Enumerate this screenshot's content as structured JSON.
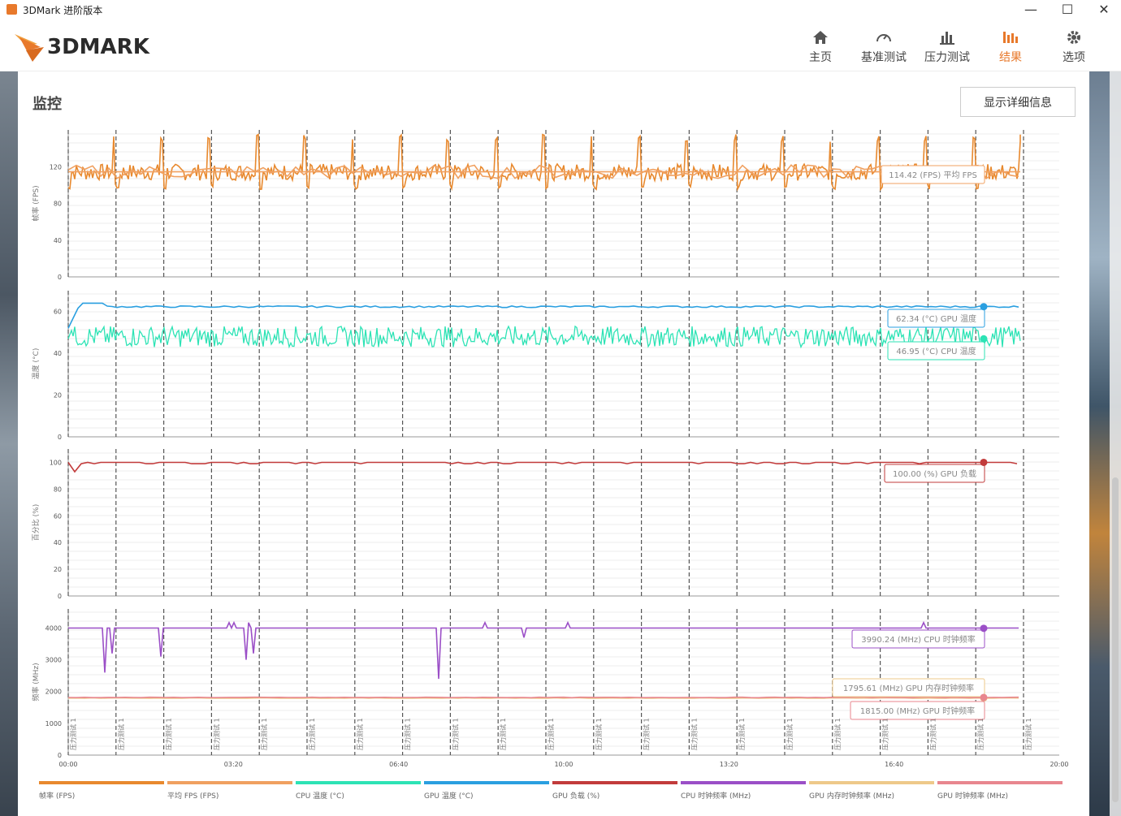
{
  "window": {
    "title": "3DMark 进阶版本",
    "minimize": "—",
    "maximize": "☐",
    "close": "✕"
  },
  "brand": {
    "logo_text": "3DMARK"
  },
  "nav": [
    {
      "label": "主页",
      "icon": "home-icon",
      "active": false
    },
    {
      "label": "基准测试",
      "icon": "gauge-icon",
      "active": false
    },
    {
      "label": "压力测试",
      "icon": "bar-chart-icon",
      "active": false
    },
    {
      "label": "结果",
      "icon": "results-icon",
      "active": true
    },
    {
      "label": "选项",
      "icon": "gear-icon",
      "active": false
    }
  ],
  "section": {
    "title": "监控",
    "detail_button": "显示详细信息"
  },
  "chart_data": {
    "type": "line",
    "x_ticks": [
      "00:00",
      "03:20",
      "06:40",
      "10:00",
      "13:20",
      "16:40",
      "20:00"
    ],
    "x_range_seconds": [
      0,
      1200
    ],
    "marker_label": "压力测试 1",
    "marker_count": 21,
    "colors": {
      "fps": "#e8892e",
      "avg_fps": "#f0a060",
      "cpu_temp": "#2de3b5",
      "gpu_temp": "#2a9fe0",
      "gpu_load": "#c23b3b",
      "cpu_clock": "#9b4fc7",
      "gpu_mem_clock": "#eec98a",
      "gpu_clock": "#e8868e"
    },
    "panels": [
      {
        "ylabel": "帧率 (FPS)",
        "yticks": [
          0,
          40,
          80,
          120
        ],
        "ylim": [
          0,
          160
        ],
        "series": [
          {
            "name": "帧率 (FPS)",
            "key": "fps",
            "pattern": "sawtooth",
            "base": 114,
            "min": 95,
            "peak": 155
          },
          {
            "name": "平均 FPS (FPS)",
            "key": "avg_fps",
            "value": 114.42
          }
        ],
        "callouts": [
          {
            "text": "114.42 (FPS) 平均 FPS",
            "key": "avg_fps"
          }
        ]
      },
      {
        "ylabel": "温度 (°C)",
        "yticks": [
          0,
          20,
          40,
          60
        ],
        "ylim": [
          0,
          70
        ],
        "series": [
          {
            "name": "GPU 温度 (°C)",
            "key": "gpu_temp",
            "value": 62.34,
            "peak": 64
          },
          {
            "name": "CPU 温度 (°C)",
            "key": "cpu_temp",
            "value": 46.95,
            "noise_min": 43,
            "noise_max": 53
          }
        ],
        "callouts": [
          {
            "text": "62.34 (°C) GPU 温度",
            "key": "gpu_temp"
          },
          {
            "text": "46.95 (°C) CPU 温度",
            "key": "cpu_temp"
          }
        ]
      },
      {
        "ylabel": "百分比 (%)",
        "yticks": [
          0,
          20,
          40,
          60,
          80,
          100
        ],
        "ylim": [
          0,
          110
        ],
        "series": [
          {
            "name": "GPU 负载 (%)",
            "key": "gpu_load",
            "value": 100.0,
            "dip": 93
          }
        ],
        "callouts": [
          {
            "text": "100.00 (%) GPU 负载",
            "key": "gpu_load"
          }
        ]
      },
      {
        "ylabel": "频率 (MHz)",
        "yticks": [
          0,
          1000,
          2000,
          3000,
          4000
        ],
        "ylim": [
          0,
          4600
        ],
        "series": [
          {
            "name": "CPU 时钟频率 (MHz)",
            "key": "cpu_clock",
            "value": 3990.24
          },
          {
            "name": "GPU 内存时钟频率 (MHz)",
            "key": "gpu_mem_clock",
            "value": 1795.61
          },
          {
            "name": "GPU 时钟频率 (MHz)",
            "key": "gpu_clock",
            "value": 1815.0
          }
        ],
        "callouts": [
          {
            "text": "3990.24 (MHz) CPU 时钟频率",
            "key": "cpu_clock"
          },
          {
            "text": "1795.61 (MHz) GPU 内存时钟频率",
            "key": "gpu_mem_clock"
          },
          {
            "text": "1815.00 (MHz) GPU 时钟频率",
            "key": "gpu_clock"
          }
        ]
      }
    ],
    "legend": [
      {
        "label": "帧率 (FPS)",
        "key": "fps"
      },
      {
        "label": "平均 FPS (FPS)",
        "key": "avg_fps"
      },
      {
        "label": "CPU 温度 (°C)",
        "key": "cpu_temp"
      },
      {
        "label": "GPU 温度 (°C)",
        "key": "gpu_temp"
      },
      {
        "label": "GPU 负载 (%)",
        "key": "gpu_load"
      },
      {
        "label": "CPU 时钟频率 (MHz)",
        "key": "cpu_clock"
      },
      {
        "label": "GPU 内存时钟频率 (MHz)",
        "key": "gpu_mem_clock"
      },
      {
        "label": "GPU 时钟频率 (MHz)",
        "key": "gpu_clock"
      }
    ]
  }
}
